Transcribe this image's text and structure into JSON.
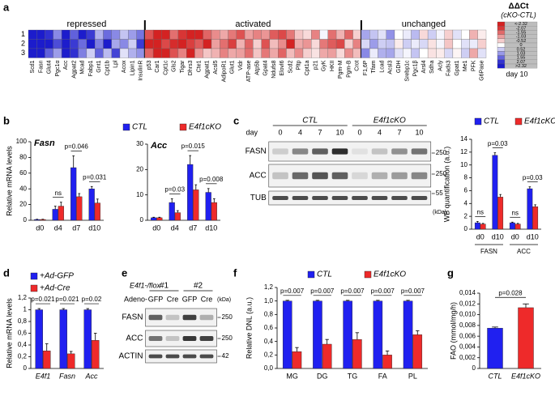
{
  "panel_labels": [
    "a",
    "b",
    "c",
    "d",
    "e",
    "f",
    "g"
  ],
  "chart_data": [
    {
      "type": "heatmap",
      "rows": [
        "1",
        "2",
        "3"
      ],
      "low_color": "#d42020",
      "high_color": "#1a1acc",
      "groups": [
        {
          "label": "repressed",
          "color": "#1a1acc",
          "genes": [
            "Scd1",
            "Fasn",
            "Glut4",
            "Pgc1α",
            "Acc",
            "Agpat2",
            "Mcad",
            "Fabp1",
            "Gnt1",
            "Cpt1b",
            "Lpl",
            "Acox",
            "Lipin1",
            "InsulinR"
          ],
          "values": [
            [
              2.3,
              2.3,
              2.1,
              1.2,
              2.3,
              1.6,
              2.3,
              2.0,
              0.8,
              1.5,
              1.2,
              0.6,
              1.0,
              1.4
            ],
            [
              2.3,
              2.3,
              2.3,
              1.8,
              2.3,
              2.0,
              1.5,
              2.3,
              1.3,
              2.3,
              0.9,
              1.2,
              0.5,
              2.0
            ],
            [
              2.3,
              2.3,
              1.6,
              1.0,
              2.3,
              2.1,
              1.3,
              0.5,
              1.6,
              0.7,
              1.9,
              0.3,
              0.8,
              1.1
            ]
          ]
        },
        {
          "label": "activated",
          "color": "#d42020",
          "genes": [
            "p53",
            "Car1",
            "Cpt1c",
            "Gls2",
            "Tigar",
            "Dhrs3",
            "Cte1",
            "Agpat1",
            "Acsl5",
            "AdipoR1",
            "Glut1",
            "Vldr",
            "ATP-ase",
            "Atp5b",
            "Gpat4",
            "Ndufs8",
            "Elovl6",
            "Scd2",
            "Pltp",
            "Cpt1a",
            "p21",
            "GyK",
            "HKII",
            "Pgm-M",
            "Pgm-B",
            "Crot"
          ],
          "values": [
            [
              -1.8,
              -2.3,
              -2.3,
              -1.5,
              -2.1,
              -2.3,
              -2.3,
              -1.6,
              -1.2,
              -0.9,
              -1.4,
              -1.8,
              -1.0,
              -1.3,
              -1.1,
              -1.7,
              -1.9,
              -1.4,
              -0.6,
              -0.4,
              -1.3,
              0.1,
              -1.5,
              -0.8,
              -1.6,
              -0.5
            ],
            [
              -2.3,
              -2.3,
              -1.9,
              -2.2,
              -2.3,
              -2.0,
              -1.7,
              -2.3,
              -1.0,
              -1.5,
              -2.0,
              -0.8,
              -1.6,
              -0.5,
              -1.8,
              -0.7,
              -1.2,
              -2.3,
              -0.9,
              -1.1,
              -0.4,
              -1.4,
              -1.7,
              -1.9,
              -0.5,
              -1.3
            ],
            [
              -1.6,
              -2.3,
              -2.3,
              -1.8,
              -1.3,
              -2.3,
              -1.1,
              -0.6,
              -0.8,
              -1.3,
              -0.9,
              -1.0,
              -1.5,
              -0.6,
              -1.4,
              -0.9,
              -1.6,
              -0.7,
              -1.2,
              -0.5,
              -0.3,
              -0.9,
              -1.0,
              -0.4,
              -1.2,
              -0.7
            ]
          ]
        },
        {
          "label": "unchanged",
          "color": "#000000",
          "genes": [
            "F1,6P",
            "Tfam",
            "Lcad",
            "Acsl3",
            "GDH",
            "Srebp1c",
            "Pgc1β",
            "Arsl4",
            "Sdha",
            "Acly",
            "Fads3",
            "Gpat1",
            "Me1",
            "PFK",
            "G6Pase"
          ],
          "values": [
            [
              0.9,
              0.6,
              0.3,
              1.1,
              0.0,
              0.2,
              0.7,
              -0.4,
              0.5,
              0.1,
              -0.5,
              0.3,
              0.0,
              -0.8,
              -0.2
            ],
            [
              0.4,
              1.0,
              0.5,
              0.6,
              -0.2,
              0.5,
              0.2,
              0.4,
              -0.3,
              0.1,
              -0.6,
              0.0,
              0.3,
              0.2,
              -0.5
            ],
            [
              1.2,
              0.2,
              0.8,
              0.9,
              0.3,
              0.1,
              0.6,
              0.0,
              -0.3,
              -0.2,
              0.4,
              -0.1,
              0.5,
              -0.9,
              0.3
            ]
          ]
        }
      ],
      "colorbar": {
        "title": "ΔΔCt",
        "subtitle": "(cKO-CTL)",
        "note": "day 10",
        "ticks": [
          {
            "value": -2.32,
            "label": "<-2.32"
          },
          -2.07,
          -1.55,
          -1.03,
          -0.52,
          0,
          0.52,
          1.03,
          1.55,
          2.07,
          {
            "value": 2.32,
            "label": ">2.32"
          }
        ]
      }
    },
    {
      "type": "bar",
      "title": "Fasn",
      "y_label": "Relative mRNA levels",
      "categories": [
        "d0",
        "d4",
        "d7",
        "d10"
      ],
      "series": [
        {
          "name": "CTL",
          "color": "#2020f0",
          "values": [
            1,
            14,
            67,
            40
          ],
          "errors": [
            0.3,
            4,
            15,
            3
          ]
        },
        {
          "name": "E4f1cKO",
          "color": "#ee2a2a",
          "values": [
            1,
            18,
            30,
            22
          ],
          "errors": [
            0.3,
            5,
            4,
            5
          ]
        }
      ],
      "annotations": [
        null,
        "ns",
        "p=0.046",
        "p=0.031"
      ],
      "ylim": [
        0,
        100
      ],
      "yticks": [
        0,
        20,
        40,
        60,
        80,
        100
      ]
    },
    {
      "type": "bar",
      "title": "Acc",
      "categories": [
        "d0",
        "d4",
        "d7",
        "d10"
      ],
      "series": [
        {
          "color": "#2020f0",
          "values": [
            1,
            7,
            22,
            11
          ],
          "errors": [
            0.2,
            1.5,
            3.5,
            1.5
          ]
        },
        {
          "color": "#ee2a2a",
          "values": [
            1,
            3,
            12,
            7
          ],
          "errors": [
            0.2,
            0.8,
            2,
            1.5
          ]
        }
      ],
      "annotations": [
        null,
        "p=0.03",
        "p=0.015",
        "p=0.008"
      ],
      "ylim": [
        0,
        30
      ],
      "yticks": [
        0,
        10,
        20,
        30
      ]
    },
    {
      "type": "bar",
      "y_label": "WB quantification (a.u.)",
      "categories": [
        "d0",
        "d10",
        "d0",
        "d10"
      ],
      "groups": [
        "FASN",
        "ACC"
      ],
      "series": [
        {
          "name": "CTL",
          "color": "#2020f0",
          "values": [
            1,
            11.5,
            1,
            6.3
          ],
          "errors": [
            0.2,
            0.4,
            0.1,
            0.3
          ]
        },
        {
          "name": "E4f1cKO",
          "color": "#ee2a2a",
          "values": [
            0.8,
            5,
            0.8,
            3.5
          ],
          "errors": [
            0.1,
            0.4,
            0.1,
            0.3
          ]
        }
      ],
      "annotations": [
        "ns",
        "p=0.03",
        "ns",
        "p=0.03"
      ],
      "ylim": [
        0,
        14
      ],
      "yticks": [
        0,
        2,
        4,
        6,
        8,
        10,
        12,
        14
      ]
    },
    {
      "type": "bar",
      "y_label": "Relative mRNA levels",
      "categories": [
        "E4f1",
        "Fasn",
        "Acc"
      ],
      "category_style": "italic",
      "series": [
        {
          "name": "+Ad-GFP",
          "color": "#2020f0",
          "values": [
            1,
            1,
            1
          ],
          "errors": [
            0.02,
            0.02,
            0.02
          ]
        },
        {
          "name": "+Ad-Cre",
          "color": "#ee2a2a",
          "values": [
            0.3,
            0.25,
            0.48
          ],
          "errors": [
            0.12,
            0.04,
            0.12
          ]
        }
      ],
      "annotations": [
        "p=0.021",
        "p=0.021",
        "p=0.02"
      ],
      "ylim": [
        0,
        1.2
      ],
      "yticks": [
        0,
        {
          "value": 0.2,
          "label": "0,2"
        },
        {
          "value": 0.4,
          "label": "0,4"
        },
        {
          "value": 0.6,
          "label": "0,6"
        },
        {
          "value": 0.8,
          "label": "0,8"
        },
        1,
        {
          "value": 1.2,
          "label": "1,2"
        }
      ]
    },
    {
      "type": "bar",
      "y_label": "Relative DNL (a.u.)",
      "categories": [
        "MG",
        "DG",
        "TG",
        "FA",
        "PL"
      ],
      "series": [
        {
          "name": "CTL",
          "color": "#2020f0",
          "values": [
            1,
            1,
            1,
            1,
            1
          ],
          "errors": [
            0.01,
            0.01,
            0.01,
            0.01,
            0.01
          ]
        },
        {
          "name": "E4f1cKO",
          "color": "#ee2a2a",
          "values": [
            0.25,
            0.36,
            0.43,
            0.2,
            0.5
          ],
          "errors": [
            0.06,
            0.07,
            0.1,
            0.06,
            0.06
          ]
        }
      ],
      "annotations": [
        "p=0.007",
        "p=0.007",
        "p=0.007",
        "p=0.007",
        "p=0.007"
      ],
      "ylim": [
        0,
        1.2
      ],
      "yticks": [
        {
          "value": 0,
          "label": "0,0"
        },
        {
          "value": 0.2,
          "label": "0,2"
        },
        {
          "value": 0.4,
          "label": "0,4"
        },
        {
          "value": 0.6,
          "label": "0,6"
        },
        {
          "value": 0.8,
          "label": "0,8"
        },
        {
          "value": 1,
          "label": "1,0"
        },
        {
          "value": 1.2,
          "label": "1,2"
        }
      ]
    },
    {
      "type": "bar",
      "y_label": "FAO (mmol/mg/h)",
      "categories": [
        "CTL",
        "E4f1cKO"
      ],
      "category_style": "italic",
      "values": [
        0.0075,
        0.0113
      ],
      "errors": [
        0.0002,
        0.0007
      ],
      "colors": [
        "#2020f0",
        "#ee2a2a"
      ],
      "annotation": "p=0.028",
      "ylim": [
        0,
        0.014
      ],
      "yticks": [
        0,
        {
          "value": 0.002,
          "label": "0,002"
        },
        {
          "value": 0.004,
          "label": "0,004"
        },
        {
          "value": 0.006,
          "label": "0,006"
        },
        {
          "value": 0.008,
          "label": "0,008"
        },
        {
          "value": 0.01,
          "label": "0,010"
        },
        {
          "value": 0.012,
          "label": "0,012"
        },
        {
          "value": 0.014,
          "label": "0,014"
        }
      ]
    }
  ],
  "blots": [
    {
      "lane_label": "day",
      "lanes": [
        "0",
        "4",
        "7",
        "10",
        "0",
        "4",
        "7",
        "10"
      ],
      "groups": [
        "CTL",
        "E4f1cKO"
      ],
      "rows": [
        {
          "label": "FASN",
          "marker": "250"
        },
        {
          "label": "ACC",
          "marker": "250"
        },
        {
          "label": "TUB",
          "marker": "55"
        }
      ],
      "unit": "(kDa)"
    },
    {
      "genotype": "E4f1-/flox",
      "lane_label": "Adeno-",
      "lanes": [
        "GFP",
        "Cre",
        "GFP",
        "Cre"
      ],
      "groups": [
        "#1",
        "#2"
      ],
      "rows": [
        {
          "label": "FASN",
          "marker": "250"
        },
        {
          "label": "ACC",
          "marker": "250"
        },
        {
          "label": "ACTIN",
          "marker": "42"
        }
      ],
      "unit": "(kDa)"
    }
  ]
}
